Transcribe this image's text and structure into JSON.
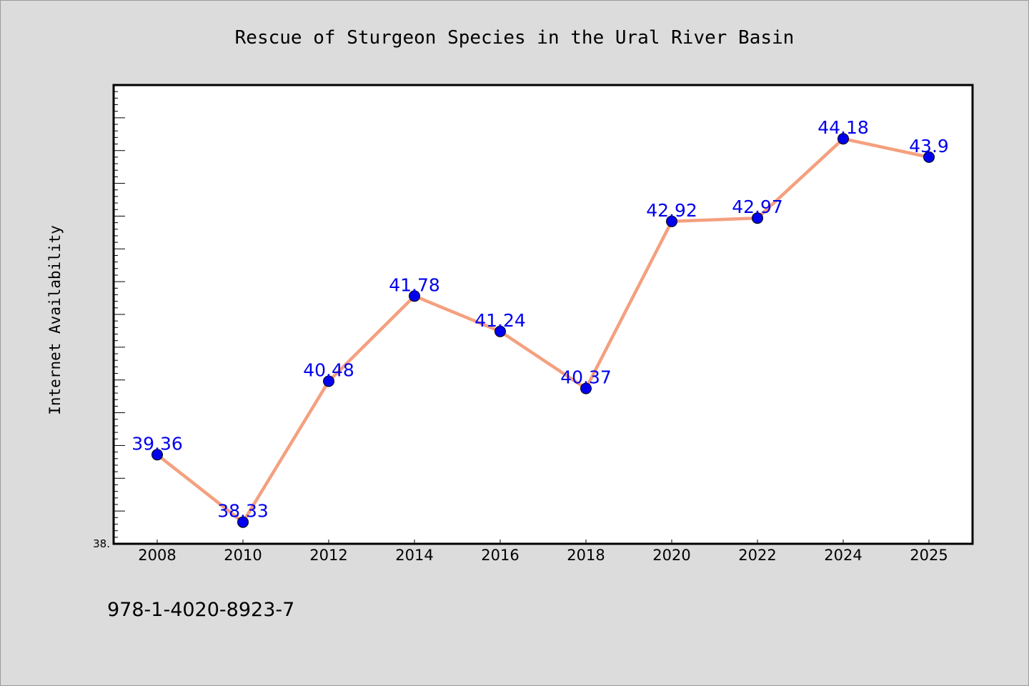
{
  "chart_data": {
    "type": "line",
    "title": "Rescue of Sturgeon Species in the Ural River Basin",
    "xlabel": "",
    "ylabel": "Internet Availability",
    "categories": [
      "2008",
      "2010",
      "2012",
      "2014",
      "2016",
      "2018",
      "2020",
      "2022",
      "2024",
      "2025"
    ],
    "series": [
      {
        "values": [
          39.36,
          38.33,
          40.48,
          41.78,
          41.24,
          40.37,
          42.92,
          42.97,
          44.18,
          43.9
        ],
        "labels": [
          "39.36",
          "38.33",
          "40.48",
          "41.78",
          "41.24",
          "40.37",
          "42.92",
          "42.97",
          "44.18",
          "43.9"
        ],
        "line_color": "#f4a07f",
        "marker_color": "#0000ee",
        "label_color": "#0000ee"
      }
    ],
    "ylim": [
      38.0,
      45.0
    ],
    "y_tick_step": 0.5,
    "y_minor_tick_step": 0.1,
    "y_tick_labels": [
      "38."
    ],
    "grid": false,
    "legend": "none",
    "plot_background": "#ffffff",
    "page_background": "#dcdcdc"
  },
  "footnote": "978-1-4020-8923-7"
}
